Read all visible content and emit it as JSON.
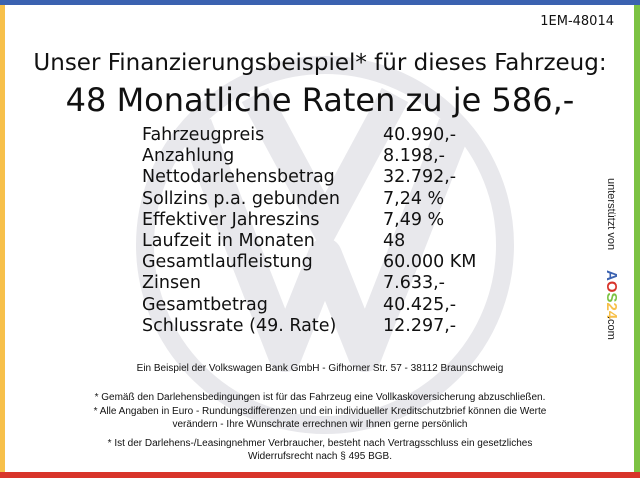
{
  "colors": {
    "top": "#3b62b0",
    "left": "#f7c04a",
    "right": "#7cc243",
    "bottom": "#d8342a",
    "watermark": "#e8e8ec"
  },
  "watermark_icon": "vw-logo",
  "code": "1EM-48014",
  "title_line1": "Unser Finanzierungsbeispiel* für dieses Fahrzeug:",
  "title_line2": "48 Monatliche Raten zu je 586,-",
  "rows": [
    {
      "label": "Fahrzeugpreis",
      "value": "40.990,-"
    },
    {
      "label": "Anzahlung",
      "value": "8.198,-"
    },
    {
      "label": "Nettodarlehensbetrag",
      "value": "32.792,-"
    },
    {
      "label": "Sollzins p.a. gebunden",
      "value": "7,24 %"
    },
    {
      "label": "Effektiver Jahreszins",
      "value": "7,49 %"
    },
    {
      "label": "Laufzeit in Monaten",
      "value": "48"
    },
    {
      "label": "Gesamtlaufleistung",
      "value": "60.000 KM"
    },
    {
      "label": "Zinsen",
      "value": "7.633,-"
    },
    {
      "label": "Gesamtbetrag",
      "value": "40.425,-"
    },
    {
      "label": "Schlussrate (49. Rate)",
      "value": "12.297,-"
    }
  ],
  "side": {
    "prefix": "unterstützt von",
    "brand": "AOS24",
    "suffix": ".com"
  },
  "footer": {
    "bank": "Ein Beispiel der Volkswagen Bank GmbH - Gifhorner Str. 57 - 38112 Braunschweig",
    "note1": "* Gemäß den Darlehensbedingungen ist für das Fahrzeug eine Vollkaskoversicherung abzuschließen.",
    "note2a": "* Alle Angaben in Euro - Rundungsdifferenzen und ein individueller Kreditschutzbrief können die Werte",
    "note2b": "verändern - Ihre Wunschrate errechnen wir Ihnen gerne persönlich",
    "note3a": "* Ist der Darlehens-/Leasingnehmer Verbraucher, besteht nach Vertragsschluss ein gesetzliches",
    "note3b": "Widerrufsrecht nach § 495 BGB."
  }
}
